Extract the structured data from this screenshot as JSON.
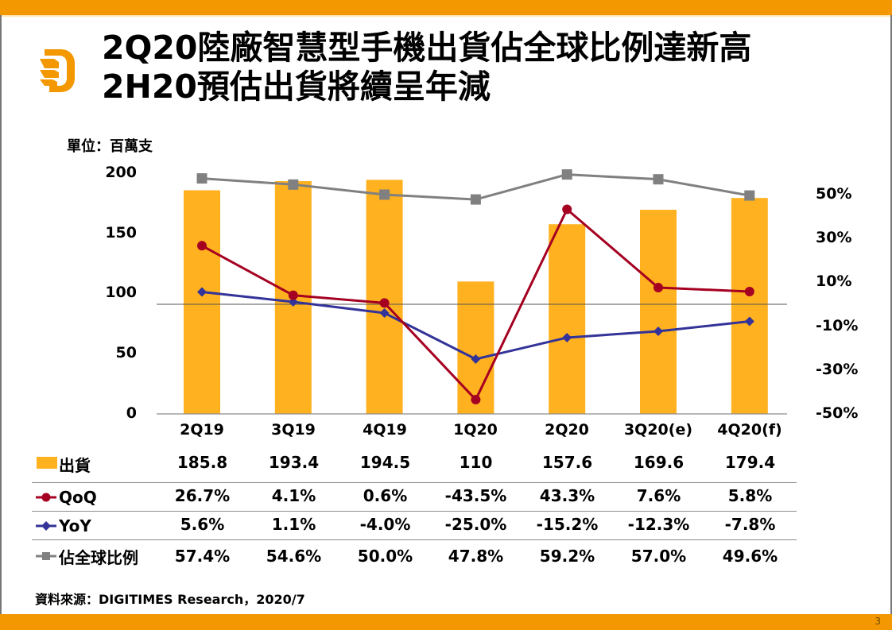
{
  "slide": {
    "title_line1": "2Q20陸廠智慧型手機出貨佔全球比例達新高",
    "title_line2": "2H20預估出貨將續呈年減",
    "unit_label": "單位：百萬支",
    "source": "資料來源：DIGITIMES Research，2020/7",
    "page_number": "3",
    "logo_icon": "digitimes-d-logo-icon",
    "colors": {
      "accent": "#F39800",
      "bar": "#FFB11F",
      "qoq": "#A50021",
      "yoy": "#333399",
      "share": "#808080"
    }
  },
  "chart_data": {
    "type": "bar",
    "title": "2Q20陸廠智慧型手機出貨佔全球比例達新高 / 2H20預估出貨將續呈年減",
    "xlabel": "",
    "ylabel": "單位：百萬支",
    "categories": [
      "2Q19",
      "3Q19",
      "4Q19",
      "1Q20",
      "2Q20",
      "3Q20(e)",
      "4Q20(f)"
    ],
    "ylim": [
      0,
      200
    ],
    "yticks": [
      "0",
      "50",
      "100",
      "150",
      "200"
    ],
    "y2lim": [
      -50,
      50
    ],
    "y2ticks": [
      "-50%",
      "-30%",
      "-10%",
      "10%",
      "30%",
      "50%"
    ],
    "grid": false,
    "legend": "table-bottom",
    "series": [
      {
        "name": "出貨",
        "type": "bar",
        "axis": "left",
        "values": [
          185.8,
          193.4,
          194.5,
          110,
          157.6,
          169.6,
          179.4
        ],
        "labels": [
          "185.8",
          "193.4",
          "194.5",
          "110",
          "157.6",
          "169.6",
          "179.4"
        ]
      },
      {
        "name": "QoQ",
        "type": "line",
        "marker": "circle",
        "axis": "right",
        "values": [
          26.7,
          4.1,
          0.6,
          -43.5,
          43.3,
          7.6,
          5.8
        ],
        "labels": [
          "26.7%",
          "4.1%",
          "0.6%",
          "-43.5%",
          "43.3%",
          "7.6%",
          "5.8%"
        ]
      },
      {
        "name": "YoY",
        "type": "line",
        "marker": "diamond",
        "axis": "right",
        "values": [
          5.6,
          1.1,
          -4.0,
          -25.0,
          -15.2,
          -12.3,
          -7.8
        ],
        "labels": [
          "5.6%",
          "1.1%",
          "-4.0%",
          "-25.0%",
          "-15.2%",
          "-12.3%",
          "-7.8%"
        ]
      },
      {
        "name": "佔全球比例",
        "type": "line",
        "marker": "square",
        "axis": "right",
        "values": [
          57.4,
          54.6,
          50.0,
          47.8,
          59.2,
          57.0,
          49.6
        ],
        "labels": [
          "57.4%",
          "54.6%",
          "50.0%",
          "47.8%",
          "59.2%",
          "57.0%",
          "49.6%"
        ]
      }
    ]
  }
}
